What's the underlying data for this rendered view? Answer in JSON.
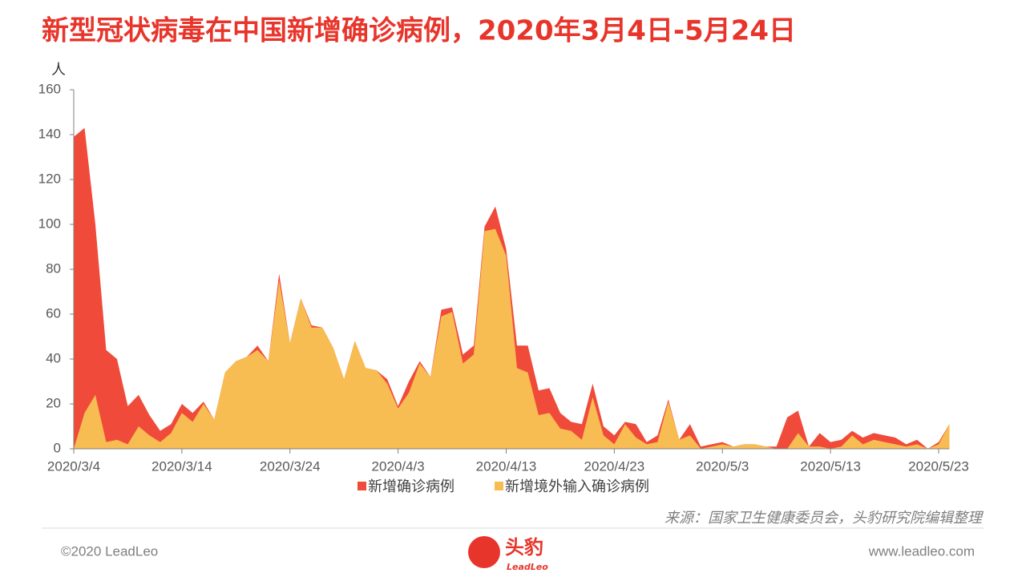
{
  "chart_data": {
    "type": "area",
    "title": "新型冠状病毒在中国新增确诊病例，2020年3月4日-5月24日",
    "y_axis_label": "人",
    "categories": [
      "2020/3/4",
      null,
      null,
      null,
      null,
      null,
      null,
      null,
      null,
      null,
      "2020/3/14",
      null,
      null,
      null,
      null,
      null,
      null,
      null,
      null,
      null,
      "2020/3/24",
      null,
      null,
      null,
      null,
      null,
      null,
      null,
      null,
      null,
      "2020/4/3",
      null,
      null,
      null,
      null,
      null,
      null,
      null,
      null,
      null,
      "2020/4/13",
      null,
      null,
      null,
      null,
      null,
      null,
      null,
      null,
      null,
      "2020/4/23",
      null,
      null,
      null,
      null,
      null,
      null,
      null,
      null,
      null,
      "2020/5/3",
      null,
      null,
      null,
      null,
      null,
      null,
      null,
      null,
      null,
      "2020/5/13",
      null,
      null,
      null,
      null,
      null,
      null,
      null,
      null,
      null,
      "2020/5/23",
      null
    ],
    "series": [
      {
        "name": "新增确诊病例",
        "color": "#f04a3a",
        "values": [
          139,
          143,
          100,
          44,
          40,
          19,
          24,
          15,
          8,
          11,
          20,
          16,
          21,
          13,
          34,
          39,
          41,
          46,
          39,
          78,
          47,
          67,
          55,
          54,
          45,
          31,
          48,
          36,
          35,
          31,
          19,
          30,
          39,
          32,
          62,
          63,
          42,
          46,
          99,
          108,
          89,
          46,
          46,
          26,
          27,
          16,
          12,
          11,
          29,
          10,
          6,
          12,
          11,
          3,
          6,
          22,
          4,
          11,
          1,
          2,
          3,
          1,
          2,
          2,
          1,
          1,
          14,
          17,
          1,
          7,
          3,
          4,
          8,
          5,
          7,
          6,
          5,
          2,
          4,
          0,
          3,
          11
        ]
      },
      {
        "name": "新增境外输入确诊病例",
        "color": "#f7bc52",
        "values": [
          0,
          16,
          24,
          3,
          4,
          2,
          10,
          6,
          3,
          7,
          16,
          12,
          20,
          13,
          34,
          39,
          41,
          44,
          39,
          75,
          47,
          67,
          54,
          54,
          45,
          31,
          48,
          36,
          35,
          29,
          18,
          25,
          38,
          32,
          59,
          61,
          38,
          42,
          97,
          98,
          86,
          36,
          34,
          15,
          16,
          9,
          8,
          4,
          23,
          6,
          2,
          11,
          5,
          2,
          3,
          21,
          4,
          6,
          0,
          1,
          2,
          1,
          2,
          2,
          1,
          0,
          0,
          7,
          1,
          1,
          0,
          1,
          6,
          2,
          4,
          3,
          2,
          1,
          2,
          0,
          2,
          11
        ]
      }
    ],
    "ylim": [
      0,
      160
    ],
    "yticks": [
      0,
      20,
      40,
      60,
      80,
      100,
      120,
      140,
      160
    ],
    "legend": "bottom",
    "source": "来源：国家卫生健康委员会，头豹研究院编辑整理"
  },
  "footer": {
    "copyright": "©2020 LeadLeo",
    "logo": "头豹",
    "logo_sub": "LeadLeo",
    "website": "www.leadleo.com"
  }
}
